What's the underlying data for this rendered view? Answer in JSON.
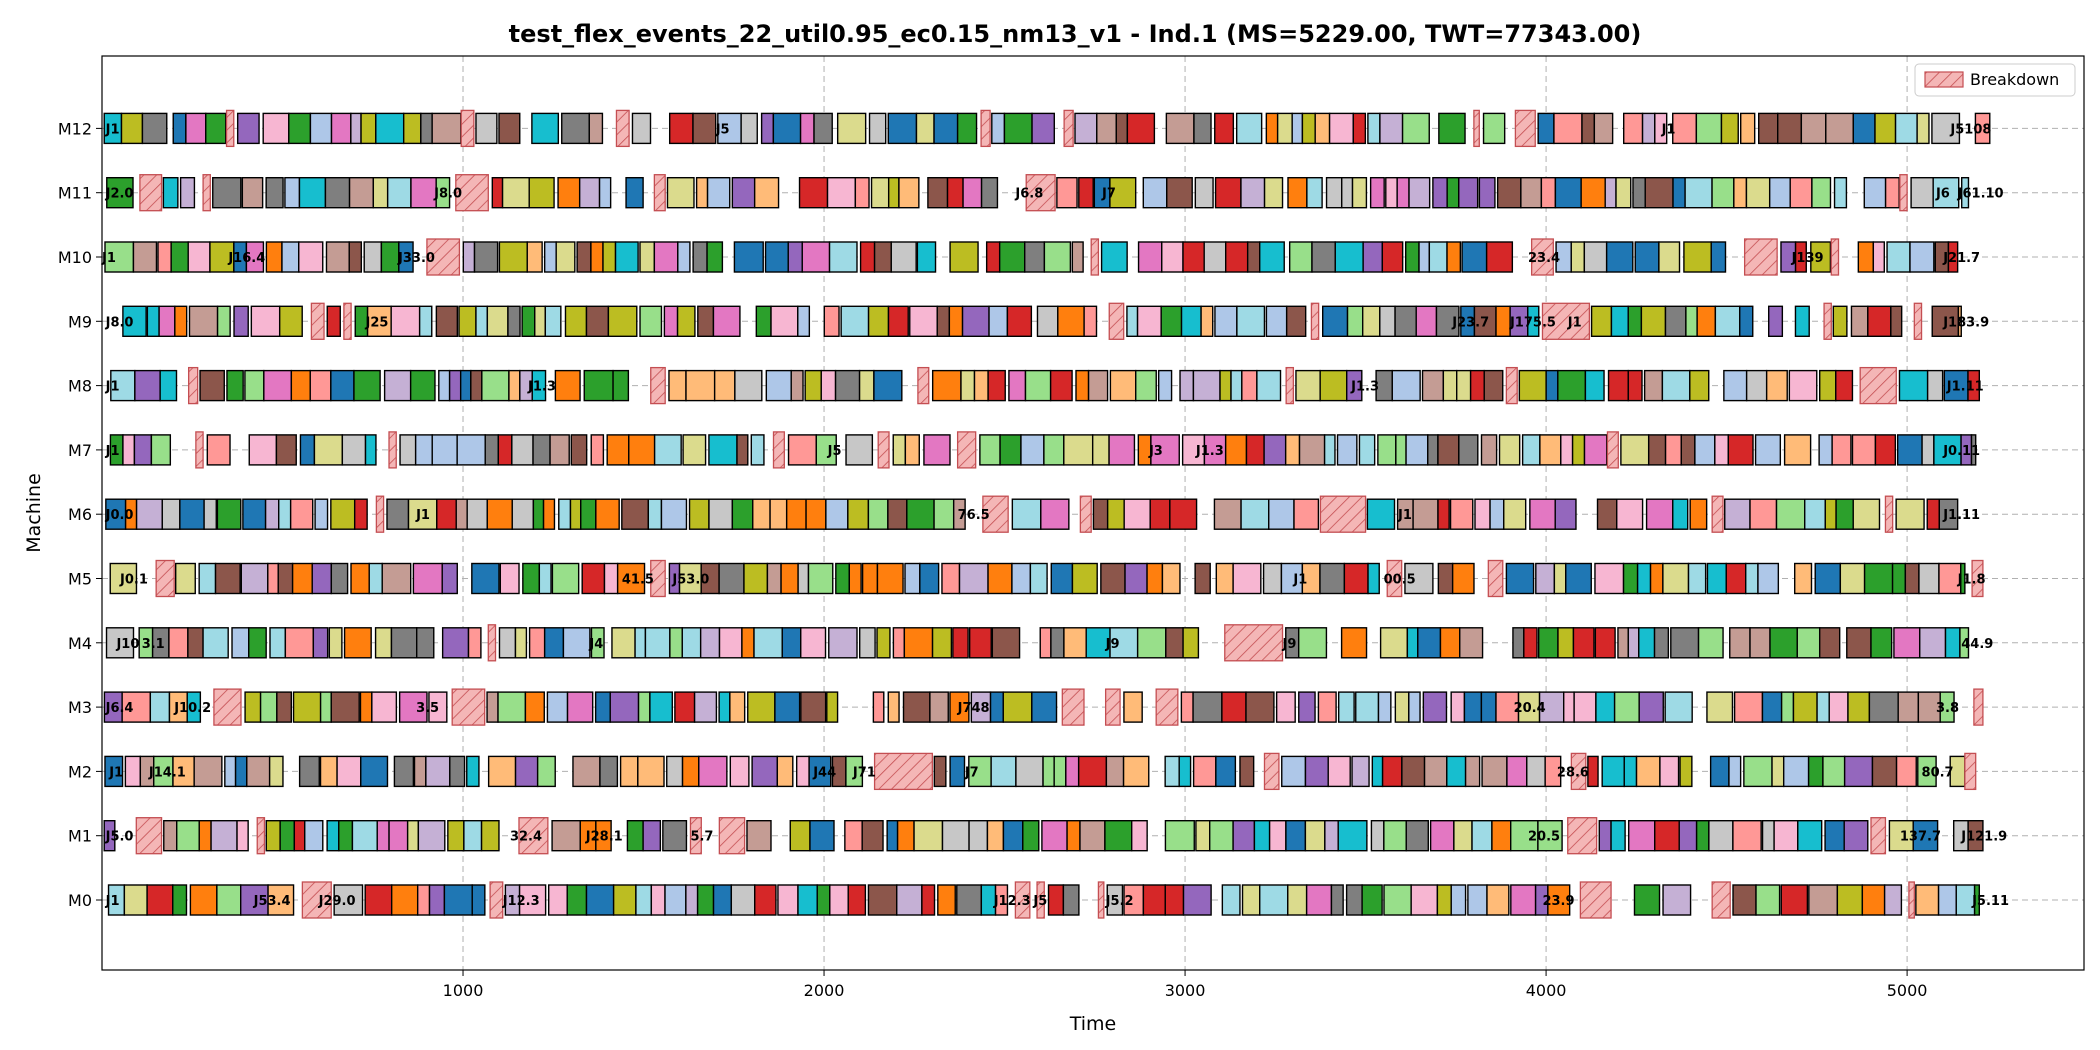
{
  "chart_data": {
    "type": "gantt",
    "title": "test_flex_events_22_util0.95_ec0.15_nm13_v1 - Ind.1 (MS=5229.00, TWT=77343.00)",
    "xlabel": "Time",
    "ylabel": "Machine",
    "xlim": [
      0,
      5490
    ],
    "xticks": [
      1000,
      2000,
      3000,
      4000,
      5000
    ],
    "machines": [
      "M0",
      "M1",
      "M2",
      "M3",
      "M4",
      "M5",
      "M6",
      "M7",
      "M8",
      "M9",
      "M10",
      "M11",
      "M12"
    ],
    "grid": true,
    "legend": {
      "position": "top-right",
      "entries": [
        {
          "label": "Breakdown",
          "color": "#f4b6b6",
          "edge": "#c44e52",
          "hatch": "diagonal"
        }
      ]
    },
    "palette": [
      "#1f77b4",
      "#aec7e8",
      "#ff7f0e",
      "#ffbb78",
      "#2ca02c",
      "#98df8a",
      "#d62728",
      "#ff9896",
      "#9467bd",
      "#c5b0d5",
      "#8c564b",
      "#c49c94",
      "#e377c2",
      "#f7b6d2",
      "#7f7f7f",
      "#c7c7c7",
      "#bcbd22",
      "#dbdb8d",
      "#17becf",
      "#9edae5"
    ],
    "breakdowns": [
      {
        "machine": "M0",
        "start": 555,
        "end": 635
      },
      {
        "machine": "M0",
        "start": 1075,
        "end": 1110
      },
      {
        "machine": "M0",
        "start": 2530,
        "end": 2570
      },
      {
        "machine": "M0",
        "start": 2590,
        "end": 2610
      },
      {
        "machine": "M0",
        "start": 2760,
        "end": 2775
      },
      {
        "machine": "M0",
        "start": 4095,
        "end": 4180
      },
      {
        "machine": "M0",
        "start": 4460,
        "end": 4510
      },
      {
        "machine": "M0",
        "start": 5005,
        "end": 5020
      },
      {
        "machine": "M1",
        "start": 95,
        "end": 165
      },
      {
        "machine": "M1",
        "start": 430,
        "end": 450
      },
      {
        "machine": "M1",
        "start": 1155,
        "end": 1235
      },
      {
        "machine": "M1",
        "start": 1630,
        "end": 1660
      },
      {
        "machine": "M1",
        "start": 1710,
        "end": 1780
      },
      {
        "machine": "M1",
        "start": 4060,
        "end": 4140
      },
      {
        "machine": "M1",
        "start": 4900,
        "end": 4940
      },
      {
        "machine": "M2",
        "start": 2140,
        "end": 2300
      },
      {
        "machine": "M2",
        "start": 3220,
        "end": 3260
      },
      {
        "machine": "M2",
        "start": 4070,
        "end": 4110
      },
      {
        "machine": "M2",
        "start": 5160,
        "end": 5190
      },
      {
        "machine": "M3",
        "start": 310,
        "end": 385
      },
      {
        "machine": "M3",
        "start": 970,
        "end": 1060
      },
      {
        "machine": "M3",
        "start": 2660,
        "end": 2720
      },
      {
        "machine": "M3",
        "start": 2780,
        "end": 2820
      },
      {
        "machine": "M3",
        "start": 2920,
        "end": 2980
      },
      {
        "machine": "M3",
        "start": 5185,
        "end": 5210
      },
      {
        "machine": "M4",
        "start": 3110,
        "end": 3270
      },
      {
        "machine": "M4",
        "start": 1070,
        "end": 1090
      },
      {
        "machine": "M5",
        "start": 150,
        "end": 200
      },
      {
        "machine": "M5",
        "start": 1520,
        "end": 1560
      },
      {
        "machine": "M5",
        "start": 3560,
        "end": 3600
      },
      {
        "machine": "M5",
        "start": 3840,
        "end": 3880
      },
      {
        "machine": "M5",
        "start": 5180,
        "end": 5210
      },
      {
        "machine": "M6",
        "start": 760,
        "end": 780
      },
      {
        "machine": "M6",
        "start": 2440,
        "end": 2510
      },
      {
        "machine": "M6",
        "start": 2710,
        "end": 2740
      },
      {
        "machine": "M6",
        "start": 3375,
        "end": 3500
      },
      {
        "machine": "M6",
        "start": 4460,
        "end": 4490
      },
      {
        "machine": "M6",
        "start": 4940,
        "end": 4960
      },
      {
        "machine": "M7",
        "start": 260,
        "end": 280
      },
      {
        "machine": "M7",
        "start": 795,
        "end": 815
      },
      {
        "machine": "M7",
        "start": 1860,
        "end": 1890
      },
      {
        "machine": "M7",
        "start": 2150,
        "end": 2180
      },
      {
        "machine": "M7",
        "start": 2370,
        "end": 2420
      },
      {
        "machine": "M7",
        "start": 4170,
        "end": 4200
      },
      {
        "machine": "M8",
        "start": 240,
        "end": 265
      },
      {
        "machine": "M8",
        "start": 1520,
        "end": 1560
      },
      {
        "machine": "M8",
        "start": 2260,
        "end": 2290
      },
      {
        "machine": "M8",
        "start": 3280,
        "end": 3300
      },
      {
        "machine": "M8",
        "start": 3890,
        "end": 3920
      },
      {
        "machine": "M8",
        "start": 4870,
        "end": 4970
      },
      {
        "machine": "M9",
        "start": 580,
        "end": 615
      },
      {
        "machine": "M9",
        "start": 670,
        "end": 690
      },
      {
        "machine": "M9",
        "start": 2790,
        "end": 2830
      },
      {
        "machine": "M9",
        "start": 3350,
        "end": 3370
      },
      {
        "machine": "M9",
        "start": 3990,
        "end": 4120
      },
      {
        "machine": "M9",
        "start": 4770,
        "end": 4790
      },
      {
        "machine": "M9",
        "start": 5020,
        "end": 5040
      },
      {
        "machine": "M10",
        "start": 900,
        "end": 990
      },
      {
        "machine": "M10",
        "start": 2740,
        "end": 2760
      },
      {
        "machine": "M10",
        "start": 3960,
        "end": 4020
      },
      {
        "machine": "M10",
        "start": 4550,
        "end": 4640
      },
      {
        "machine": "M10",
        "start": 4790,
        "end": 4810
      },
      {
        "machine": "M11",
        "start": 105,
        "end": 165
      },
      {
        "machine": "M11",
        "start": 280,
        "end": 300
      },
      {
        "machine": "M11",
        "start": 980,
        "end": 1070
      },
      {
        "machine": "M11",
        "start": 1530,
        "end": 1560
      },
      {
        "machine": "M11",
        "start": 2560,
        "end": 2640
      },
      {
        "machine": "M11",
        "start": 4980,
        "end": 5000
      },
      {
        "machine": "M12",
        "start": 345,
        "end": 365
      },
      {
        "machine": "M12",
        "start": 995,
        "end": 1030
      },
      {
        "machine": "M12",
        "start": 1425,
        "end": 1460
      },
      {
        "machine": "M12",
        "start": 2435,
        "end": 2460
      },
      {
        "machine": "M12",
        "start": 2665,
        "end": 2690
      },
      {
        "machine": "M12",
        "start": 3915,
        "end": 3970
      },
      {
        "machine": "M12",
        "start": 3800,
        "end": 3815
      }
    ],
    "bar_labels": [
      {
        "machine": "M0",
        "x": 10,
        "text": "J1"
      },
      {
        "machine": "M0",
        "x": 420,
        "text": "J53.4"
      },
      {
        "machine": "M0",
        "x": 600,
        "text": "J29.0"
      },
      {
        "machine": "M0",
        "x": 1110,
        "text": "J12.3"
      },
      {
        "machine": "M0",
        "x": 2470,
        "text": "J12.3"
      },
      {
        "machine": "M0",
        "x": 2580,
        "text": "J5"
      },
      {
        "machine": "M0",
        "x": 2780,
        "text": "J5.2"
      },
      {
        "machine": "M0",
        "x": 3990,
        "text": "23.9"
      },
      {
        "machine": "M0",
        "x": 5180,
        "text": "J5.11"
      },
      {
        "machine": "M1",
        "x": 10,
        "text": "J5.0"
      },
      {
        "machine": "M1",
        "x": 1130,
        "text": "32.4"
      },
      {
        "machine": "M1",
        "x": 1340,
        "text": "J28.1"
      },
      {
        "machine": "M1",
        "x": 1630,
        "text": "5.7"
      },
      {
        "machine": "M1",
        "x": 3950,
        "text": "20.5"
      },
      {
        "machine": "M1",
        "x": 4980,
        "text": "137.7"
      },
      {
        "machine": "M1",
        "x": 5150,
        "text": "J121.9"
      },
      {
        "machine": "M2",
        "x": 20,
        "text": "J1"
      },
      {
        "machine": "M2",
        "x": 130,
        "text": "J14.1"
      },
      {
        "machine": "M2",
        "x": 1970,
        "text": "J44"
      },
      {
        "machine": "M2",
        "x": 2080,
        "text": "J71"
      },
      {
        "machine": "M2",
        "x": 2390,
        "text": "J7"
      },
      {
        "machine": "M2",
        "x": 4030,
        "text": "28.6"
      },
      {
        "machine": "M2",
        "x": 5040,
        "text": "80.7"
      },
      {
        "machine": "M3",
        "x": 10,
        "text": "J6.4"
      },
      {
        "machine": "M3",
        "x": 200,
        "text": "J10.2"
      },
      {
        "machine": "M3",
        "x": 870,
        "text": "3.5"
      },
      {
        "machine": "M3",
        "x": 2370,
        "text": "J748"
      },
      {
        "machine": "M3",
        "x": 3910,
        "text": "20.4"
      },
      {
        "machine": "M3",
        "x": 5080,
        "text": "3.8"
      },
      {
        "machine": "M4",
        "x": 40,
        "text": "J10"
      },
      {
        "machine": "M4",
        "x": 110,
        "text": "3.1"
      },
      {
        "machine": "M4",
        "x": 1350,
        "text": "J4"
      },
      {
        "machine": "M4",
        "x": 2780,
        "text": "J9"
      },
      {
        "machine": "M4",
        "x": 3270,
        "text": "J9"
      },
      {
        "machine": "M4",
        "x": 5150,
        "text": "44.9"
      },
      {
        "machine": "M5",
        "x": 50,
        "text": "J0.1"
      },
      {
        "machine": "M5",
        "x": 1440,
        "text": "41.5"
      },
      {
        "machine": "M5",
        "x": 1580,
        "text": "J53.0"
      },
      {
        "machine": "M5",
        "x": 3300,
        "text": "J1"
      },
      {
        "machine": "M5",
        "x": 3550,
        "text": "00.5"
      },
      {
        "machine": "M5",
        "x": 5140,
        "text": "J1.8"
      },
      {
        "machine": "M6",
        "x": 10,
        "text": "J0.0"
      },
      {
        "machine": "M6",
        "x": 870,
        "text": "J1"
      },
      {
        "machine": "M6",
        "x": 2370,
        "text": "76.5"
      },
      {
        "machine": "M6",
        "x": 3590,
        "text": "J1"
      },
      {
        "machine": "M6",
        "x": 5100,
        "text": "J1.11"
      },
      {
        "machine": "M7",
        "x": 10,
        "text": "J1"
      },
      {
        "machine": "M7",
        "x": 2010,
        "text": "J5"
      },
      {
        "machine": "M7",
        "x": 2900,
        "text": "J3"
      },
      {
        "machine": "M7",
        "x": 3030,
        "text": "J1.3"
      },
      {
        "machine": "M7",
        "x": 5100,
        "text": "J0.11"
      },
      {
        "machine": "M8",
        "x": 10,
        "text": "J1"
      },
      {
        "machine": "M8",
        "x": 1180,
        "text": "J1.3"
      },
      {
        "machine": "M8",
        "x": 3460,
        "text": "J1.3"
      },
      {
        "machine": "M8",
        "x": 5110,
        "text": "J1.11"
      },
      {
        "machine": "M9",
        "x": 10,
        "text": "J8.0"
      },
      {
        "machine": "M9",
        "x": 730,
        "text": "J25"
      },
      {
        "machine": "M9",
        "x": 3740,
        "text": "J23.7"
      },
      {
        "machine": "M9",
        "x": 3900,
        "text": "J175.5"
      },
      {
        "machine": "M9",
        "x": 4060,
        "text": "J1"
      },
      {
        "machine": "M9",
        "x": 5100,
        "text": "J183.9"
      },
      {
        "machine": "M10",
        "x": 0,
        "text": "J1"
      },
      {
        "machine": "M10",
        "x": 350,
        "text": "J16.4"
      },
      {
        "machine": "M10",
        "x": 820,
        "text": "J33.0"
      },
      {
        "machine": "M10",
        "x": 3950,
        "text": "23.4"
      },
      {
        "machine": "M10",
        "x": 4680,
        "text": "J139"
      },
      {
        "machine": "M10",
        "x": 5100,
        "text": "J21.7"
      },
      {
        "machine": "M11",
        "x": 10,
        "text": "J2.0"
      },
      {
        "machine": "M11",
        "x": 920,
        "text": "J8.0"
      },
      {
        "machine": "M11",
        "x": 2530,
        "text": "J6.8"
      },
      {
        "machine": "M11",
        "x": 2770,
        "text": "J7"
      },
      {
        "machine": "M11",
        "x": 5080,
        "text": "J6"
      },
      {
        "machine": "M11",
        "x": 5140,
        "text": "J61.10"
      },
      {
        "machine": "M12",
        "x": 10,
        "text": "J1"
      },
      {
        "machine": "M12",
        "x": 1700,
        "text": "J5"
      },
      {
        "machine": "M12",
        "x": 4320,
        "text": "J1"
      },
      {
        "machine": "M12",
        "x": 5120,
        "text": "J5108"
      }
    ]
  }
}
